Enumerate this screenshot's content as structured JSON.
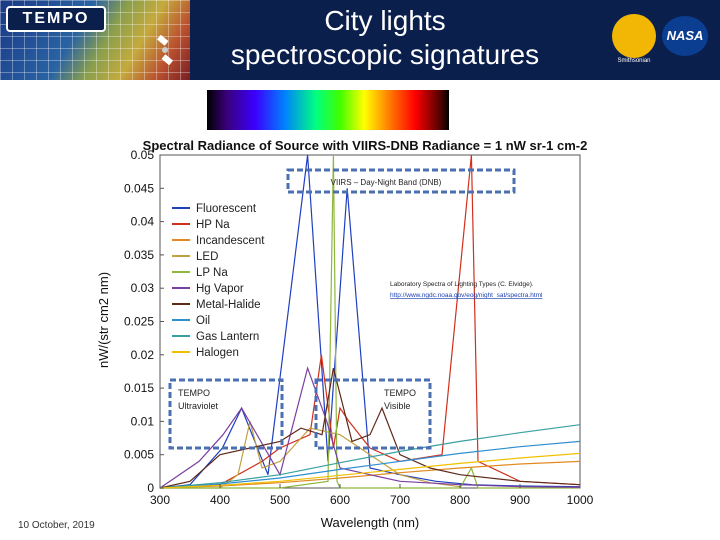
{
  "header": {
    "logo_text": "TEMPO",
    "title_line1": "City lights",
    "title_line2": "spectroscopic signatures",
    "smithsonian_label": "Smithsonian",
    "nasa_label": "NASA",
    "colors": {
      "header_bg": "#0b1f4d",
      "title": "#ffffff"
    }
  },
  "footer": {
    "date": "10 October, 2019"
  },
  "annotations": {
    "viirs": "VIIRS – Day-Night Band (DNB)",
    "lab_line1": "Laboratory Spectra of Lighting Types (C. Elvidge).",
    "lab_line2": "http://www.ngdc.noaa.gov/eog/night_sat/spectra.html",
    "tempo_uv_line1": "TEMPO",
    "tempo_uv_line2": "Ultraviolet",
    "tempo_vis_line1": "TEMPO",
    "tempo_vis_line2": "Visible"
  },
  "chart_data": {
    "type": "line",
    "title": "Spectral Radiance of Source with VIIRS-DNB Radiance = 1 nW sr-1 cm-2",
    "xlabel": "Wavelength (nm)",
    "ylabel": "nW/(str cm2 nm)",
    "xlim": [
      300,
      1000
    ],
    "ylim": [
      0,
      0.05
    ],
    "xticks": [
      300,
      400,
      500,
      600,
      700,
      800,
      900,
      1000
    ],
    "yticks": [
      0,
      0.005,
      0.01,
      0.015,
      0.02,
      0.025,
      0.03,
      0.035,
      0.04,
      0.045,
      0.05
    ],
    "ytick_labels": [
      "0",
      "0.005",
      "0.01",
      "0.015",
      "0.02",
      "0.025",
      "0.03",
      "0.035",
      "0.04",
      "0.045",
      "0.05"
    ],
    "legend_position": "upper-left",
    "series": [
      {
        "name": "Fluorescent",
        "color": "#1f3fbf",
        "x": [
          300,
          350,
          404,
          436,
          480,
          546,
          580,
          612,
          650,
          700,
          760,
          820,
          900,
          1000
        ],
        "y": [
          0,
          0.0005,
          0.006,
          0.012,
          0.002,
          0.05,
          0.004,
          0.045,
          0.003,
          0.002,
          0.001,
          0.0005,
          0.0003,
          0.0002
        ]
      },
      {
        "name": "HP Na",
        "color": "#d0301c",
        "x": [
          300,
          400,
          470,
          500,
          550,
          569,
          589,
          600,
          615,
          650,
          700,
          770,
          819,
          830,
          900,
          1000
        ],
        "y": [
          0,
          0.0005,
          0.004,
          0.006,
          0.008,
          0.02,
          0.006,
          0.012,
          0.01,
          0.006,
          0.004,
          0.005,
          0.05,
          0.004,
          0.001,
          0.0005
        ]
      },
      {
        "name": "Incandescent",
        "color": "#e08a20",
        "x": [
          300,
          400,
          500,
          600,
          700,
          800,
          900,
          1000
        ],
        "y": [
          0,
          0.0003,
          0.0008,
          0.0015,
          0.0023,
          0.003,
          0.0036,
          0.004
        ]
      },
      {
        "name": "LED",
        "color": "#c0a040",
        "x": [
          300,
          400,
          430,
          450,
          470,
          500,
          550,
          600,
          650,
          700,
          750,
          800
        ],
        "y": [
          0,
          0,
          0.002,
          0.01,
          0.003,
          0.004,
          0.009,
          0.008,
          0.005,
          0.002,
          0.0008,
          0.0002
        ]
      },
      {
        "name": "LP Na",
        "color": "#8fb63f",
        "x": [
          300,
          500,
          580,
          589,
          595,
          600,
          700,
          800,
          819,
          830,
          900,
          1000
        ],
        "y": [
          0,
          0,
          0.001,
          0.05,
          0.001,
          0,
          0,
          0,
          0.003,
          0,
          0,
          0
        ]
      },
      {
        "name": "Hg Vapor",
        "color": "#7b3fa0",
        "x": [
          300,
          365,
          405,
          436,
          500,
          546,
          578,
          600,
          650,
          700,
          800,
          900,
          1000
        ],
        "y": [
          0,
          0.004,
          0.008,
          0.012,
          0.002,
          0.018,
          0.01,
          0.003,
          0.002,
          0.001,
          0.0005,
          0.0002,
          0.0001
        ]
      },
      {
        "name": "Metal-Halide",
        "color": "#5e2a1a",
        "x": [
          300,
          350,
          400,
          450,
          500,
          535,
          570,
          589,
          620,
          650,
          670,
          700,
          750,
          800,
          900,
          1000
        ],
        "y": [
          0,
          0.001,
          0.005,
          0.006,
          0.007,
          0.009,
          0.008,
          0.018,
          0.007,
          0.008,
          0.012,
          0.005,
          0.003,
          0.002,
          0.001,
          0.0005
        ]
      },
      {
        "name": "Oil",
        "color": "#2f8fd0",
        "x": [
          300,
          400,
          500,
          600,
          700,
          800,
          900,
          1000
        ],
        "y": [
          0,
          0.0006,
          0.0015,
          0.0028,
          0.004,
          0.0052,
          0.0062,
          0.007
        ]
      },
      {
        "name": "Gas Lantern",
        "color": "#39a0a0",
        "x": [
          300,
          400,
          500,
          600,
          700,
          800,
          900,
          1000
        ],
        "y": [
          0,
          0.0008,
          0.002,
          0.0038,
          0.0055,
          0.007,
          0.0083,
          0.0095
        ]
      },
      {
        "name": "Halogen",
        "color": "#f0c000",
        "x": [
          300,
          400,
          500,
          600,
          700,
          800,
          900,
          1000
        ],
        "y": [
          0,
          0.0004,
          0.001,
          0.0019,
          0.0028,
          0.0037,
          0.0045,
          0.0052
        ]
      }
    ]
  }
}
